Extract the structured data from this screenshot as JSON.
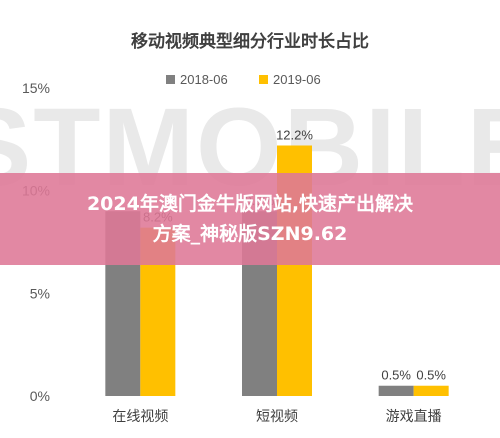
{
  "chart_data": {
    "type": "bar",
    "title": "移动视频典型细分行业时长占比",
    "categories": [
      "在线视频",
      "短视频",
      "游戏直播"
    ],
    "series": [
      {
        "name": "2018-06",
        "color": "#808080",
        "values": [
          9.0,
          9.0,
          0.5
        ],
        "labels": [
          "",
          "9.0%",
          "0.5%"
        ]
      },
      {
        "name": "2019-06",
        "color": "#ffc000",
        "values": [
          8.2,
          12.2,
          0.5
        ],
        "labels": [
          "8.2%",
          "12.2%",
          "0.5%"
        ]
      }
    ],
    "yticks": [
      "0%",
      "5%",
      "10%",
      "15%"
    ],
    "ylim": [
      0,
      15
    ],
    "legend_position": "top",
    "grid": false
  },
  "watermark": "STMOBILE",
  "overlay": {
    "line1": "2024年澳门金牛版网站,快速产出解决",
    "line2": "方案_神秘版SZN9.62"
  }
}
